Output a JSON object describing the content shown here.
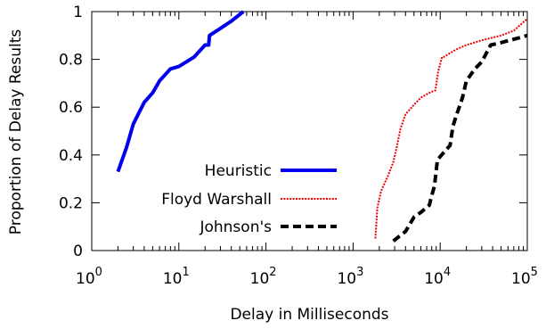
{
  "chart_data": {
    "type": "line",
    "xlabel": "Delay in Milliseconds",
    "ylabel": "Proportion of Delay Results",
    "x_scale": "log",
    "xlim": [
      1,
      100000
    ],
    "ylim": [
      0,
      1
    ],
    "grid": false,
    "legend_position": "inside-lower-left",
    "x_ticks": [
      {
        "base": "10",
        "exp": "0",
        "value": 1
      },
      {
        "base": "10",
        "exp": "1",
        "value": 10
      },
      {
        "base": "10",
        "exp": "2",
        "value": 100
      },
      {
        "base": "10",
        "exp": "3",
        "value": 1000
      },
      {
        "base": "10",
        "exp": "4",
        "value": 10000
      },
      {
        "base": "10",
        "exp": "5",
        "value": 100000
      }
    ],
    "y_ticks": [
      {
        "label": "0",
        "value": 0
      },
      {
        "label": "0.2",
        "value": 0.2
      },
      {
        "label": "0.4",
        "value": 0.4
      },
      {
        "label": "0.6",
        "value": 0.6
      },
      {
        "label": "0.8",
        "value": 0.8
      },
      {
        "label": "1",
        "value": 1
      }
    ],
    "series": [
      {
        "name": "Heuristic",
        "color": "#0000ee",
        "style": "solid",
        "points": [
          [
            2,
            0.33
          ],
          [
            2.5,
            0.43
          ],
          [
            3,
            0.53
          ],
          [
            4,
            0.62
          ],
          [
            5,
            0.66
          ],
          [
            6,
            0.71
          ],
          [
            8,
            0.76
          ],
          [
            10,
            0.77
          ],
          [
            15,
            0.81
          ],
          [
            20,
            0.86
          ],
          [
            22,
            0.86
          ],
          [
            22.5,
            0.9
          ],
          [
            30,
            0.93
          ],
          [
            40,
            0.96
          ],
          [
            55,
            1.0
          ]
        ]
      },
      {
        "name": "Floyd Warshall",
        "color": "#ee0000",
        "style": "dotted",
        "points": [
          [
            1800,
            0.05
          ],
          [
            1900,
            0.18
          ],
          [
            2100,
            0.25
          ],
          [
            2500,
            0.31
          ],
          [
            2900,
            0.37
          ],
          [
            3200,
            0.44
          ],
          [
            3500,
            0.51
          ],
          [
            4000,
            0.57
          ],
          [
            5000,
            0.61
          ],
          [
            6000,
            0.64
          ],
          [
            7500,
            0.66
          ],
          [
            8800,
            0.67
          ],
          [
            9500,
            0.75
          ],
          [
            10500,
            0.81
          ],
          [
            11000,
            0.81
          ],
          [
            15000,
            0.84
          ],
          [
            20000,
            0.86
          ],
          [
            30000,
            0.88
          ],
          [
            50000,
            0.9
          ],
          [
            70000,
            0.92
          ],
          [
            100000,
            0.97
          ]
        ]
      },
      {
        "name": "Johnson's",
        "color": "#000000",
        "style": "dashed",
        "points": [
          [
            2900,
            0.04
          ],
          [
            4000,
            0.08
          ],
          [
            5000,
            0.14
          ],
          [
            6000,
            0.16
          ],
          [
            7500,
            0.19
          ],
          [
            8000,
            0.23
          ],
          [
            8600,
            0.27
          ],
          [
            9300,
            0.38
          ],
          [
            11000,
            0.41
          ],
          [
            13000,
            0.44
          ],
          [
            14000,
            0.52
          ],
          [
            15500,
            0.57
          ],
          [
            18000,
            0.64
          ],
          [
            20000,
            0.71
          ],
          [
            25000,
            0.76
          ],
          [
            30000,
            0.79
          ],
          [
            38000,
            0.86
          ],
          [
            50000,
            0.87
          ],
          [
            80000,
            0.89
          ],
          [
            100000,
            0.9
          ]
        ]
      }
    ]
  }
}
